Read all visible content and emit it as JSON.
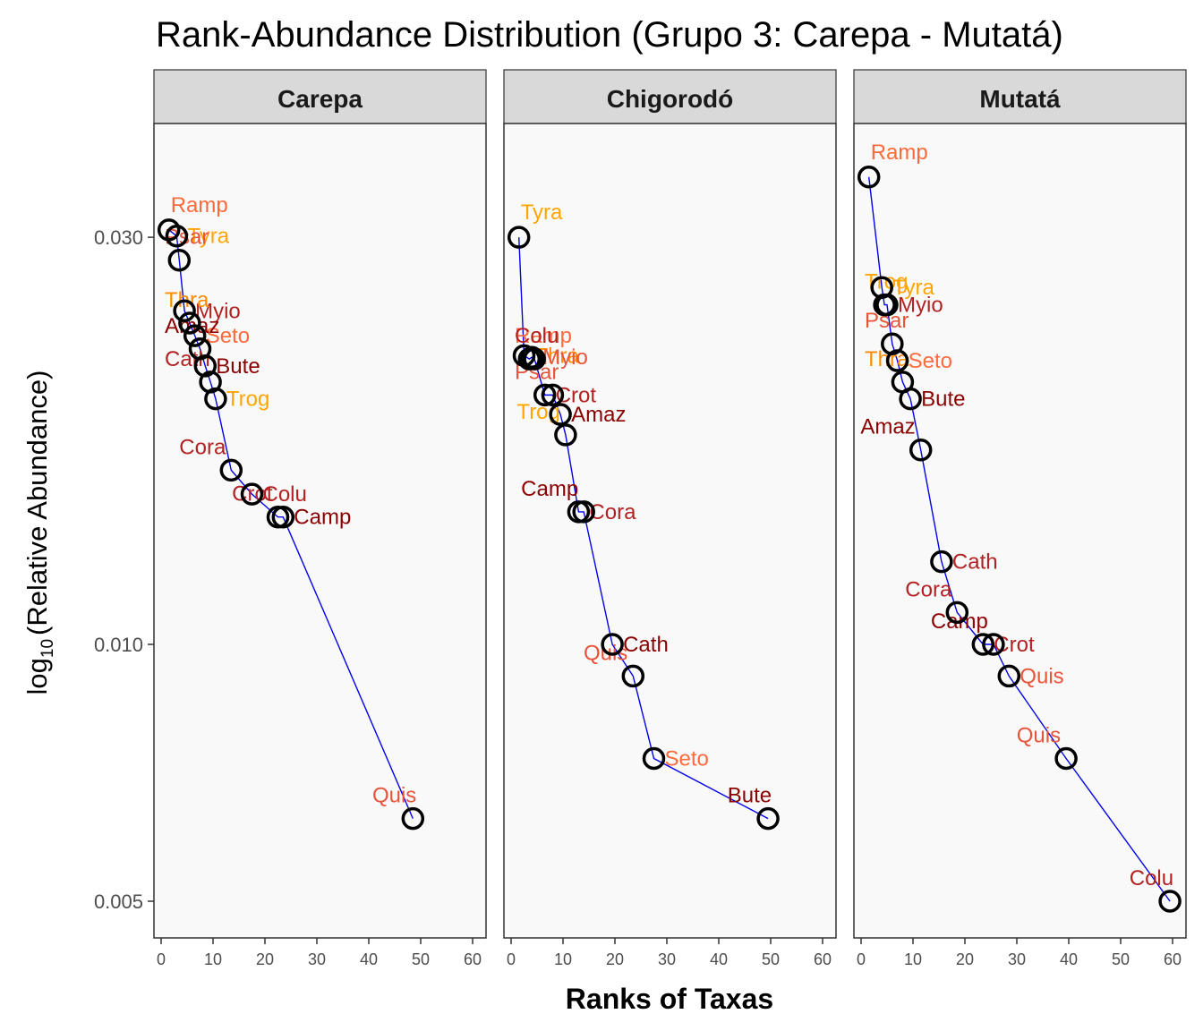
{
  "title": "Rank-Abundance Distribution (Grupo 3: Carepa - Mutatá)",
  "chart_data": {
    "type": "scatter",
    "title": "Rank-Abundance Distribution (Grupo 3: Carepa - Mutatá)",
    "xlabel": "Ranks of Taxas",
    "ylabel": {
      "prefix": "log",
      "subscript": "10",
      "text": "(Relative Abundance)"
    },
    "y_scale": "log10",
    "xlim": [
      0,
      63
    ],
    "ylim": [
      0.0045,
      0.037
    ],
    "x_ticks": [
      0,
      10,
      20,
      30,
      40,
      50,
      60
    ],
    "x_tick_labels": [
      "0",
      "10",
      "20",
      "30",
      "40",
      "50",
      "60"
    ],
    "y_ticks": [
      0.005,
      0.01,
      0.03
    ],
    "y_tick_labels": [
      "0.005",
      "0.010",
      "0.030"
    ],
    "grid": false,
    "panel_background": "#f9f9f9",
    "strip_background": "#d9d9d9",
    "line_color": "#0000ee",
    "label_colors": {
      "dark_red": "#8b0000",
      "red": "#b22222",
      "tomato": "#e8543a",
      "coral": "#ff6a3d",
      "orange": "#ff8c00",
      "gold": "#ffa500"
    },
    "panels": [
      {
        "name": "Carepa",
        "points": [
          {
            "taxon": "Ramp",
            "rank": 1.5,
            "abundance": 0.0306,
            "color": "#ff6a3d"
          },
          {
            "taxon": "Tyra",
            "rank": 3,
            "abundance": 0.0301,
            "color": "#ffa500"
          },
          {
            "taxon": "Psar",
            "rank": 3.5,
            "abundance": 0.0282,
            "color": "#e8543a"
          },
          {
            "taxon": "Myio",
            "rank": 4.5,
            "abundance": 0.0246,
            "color": "#b22222"
          },
          {
            "taxon": "Thra",
            "rank": 5.5,
            "abundance": 0.0238,
            "color": "#ff8c00"
          },
          {
            "taxon": "Seto",
            "rank": 6.5,
            "abundance": 0.023,
            "color": "#ff6a3d"
          },
          {
            "taxon": "Amaz",
            "rank": 7.5,
            "abundance": 0.0222,
            "color": "#8b0000"
          },
          {
            "taxon": "Bute",
            "rank": 8.5,
            "abundance": 0.0212,
            "color": "#8b0000"
          },
          {
            "taxon": "Cath",
            "rank": 9.5,
            "abundance": 0.0203,
            "color": "#b22222"
          },
          {
            "taxon": "Trog",
            "rank": 10.5,
            "abundance": 0.0194,
            "color": "#ffa500"
          },
          {
            "taxon": "Cora",
            "rank": 13.5,
            "abundance": 0.016,
            "color": "#b22222"
          },
          {
            "taxon": "Colu",
            "rank": 17.5,
            "abundance": 0.015,
            "color": "#b22222"
          },
          {
            "taxon": "Crot",
            "rank": 22.5,
            "abundance": 0.0141,
            "color": "#b22222"
          },
          {
            "taxon": "Camp",
            "rank": 23.5,
            "abundance": 0.0141,
            "color": "#8b0000"
          },
          {
            "taxon": "Quis",
            "rank": 48.5,
            "abundance": 0.00625,
            "color": "#e8543a"
          }
        ]
      },
      {
        "name": "Chigorodó",
        "points": [
          {
            "taxon": "Tyra",
            "rank": 1.5,
            "abundance": 0.03,
            "color": "#ffa500"
          },
          {
            "taxon": "Thra",
            "rank": 2.5,
            "abundance": 0.0218,
            "color": "#ff8c00"
          },
          {
            "taxon": "Ramp",
            "rank": 3.5,
            "abundance": 0.0216,
            "color": "#ff6a3d"
          },
          {
            "taxon": "Myio",
            "rank": 4,
            "abundance": 0.0217,
            "color": "#e8543a"
          },
          {
            "taxon": "Colu",
            "rank": 4.5,
            "abundance": 0.0216,
            "color": "#b22222"
          },
          {
            "taxon": "Crot",
            "rank": 6.5,
            "abundance": 0.0196,
            "color": "#b22222"
          },
          {
            "taxon": "Psar",
            "rank": 8,
            "abundance": 0.0196,
            "color": "#e8543a"
          },
          {
            "taxon": "Amaz",
            "rank": 9.5,
            "abundance": 0.0186,
            "color": "#8b0000"
          },
          {
            "taxon": "Trog",
            "rank": 10.5,
            "abundance": 0.0176,
            "color": "#ffa500"
          },
          {
            "taxon": "Cora",
            "rank": 13,
            "abundance": 0.0143,
            "color": "#b22222"
          },
          {
            "taxon": "Camp",
            "rank": 14,
            "abundance": 0.0143,
            "color": "#8b0000"
          },
          {
            "taxon": "Cath",
            "rank": 19.5,
            "abundance": 0.01,
            "color": "#8b0000"
          },
          {
            "taxon": "Quis",
            "rank": 23.5,
            "abundance": 0.00918,
            "color": "#e8543a"
          },
          {
            "taxon": "Seto",
            "rank": 27.5,
            "abundance": 0.00735,
            "color": "#ff6a3d"
          },
          {
            "taxon": "Bute",
            "rank": 49.5,
            "abundance": 0.00625,
            "color": "#8b0000"
          }
        ]
      },
      {
        "name": "Mutatá",
        "points": [
          {
            "taxon": "Ramp",
            "rank": 1.5,
            "abundance": 0.0353,
            "color": "#ff6a3d"
          },
          {
            "taxon": "Tyra",
            "rank": 4,
            "abundance": 0.0262,
            "color": "#ffa500"
          },
          {
            "taxon": "Trog",
            "rank": 4.5,
            "abundance": 0.025,
            "color": "#ffa500"
          },
          {
            "taxon": "Myio",
            "rank": 5,
            "abundance": 0.025,
            "color": "#b22222"
          },
          {
            "taxon": "Psar",
            "rank": 6,
            "abundance": 0.0225,
            "color": "#e8543a"
          },
          {
            "taxon": "Seto",
            "rank": 7,
            "abundance": 0.0215,
            "color": "#ff6a3d"
          },
          {
            "taxon": "Thra",
            "rank": 8,
            "abundance": 0.0203,
            "color": "#ff8c00"
          },
          {
            "taxon": "Bute",
            "rank": 9.5,
            "abundance": 0.0194,
            "color": "#8b0000"
          },
          {
            "taxon": "Amaz",
            "rank": 11.5,
            "abundance": 0.0169,
            "color": "#8b0000"
          },
          {
            "taxon": "Cath",
            "rank": 15.5,
            "abundance": 0.0125,
            "color": "#b22222"
          },
          {
            "taxon": "Cora",
            "rank": 18.5,
            "abundance": 0.0109,
            "color": "#b22222"
          },
          {
            "taxon": "Crot",
            "rank": 23.5,
            "abundance": 0.01,
            "color": "#b22222"
          },
          {
            "taxon": "Camp",
            "rank": 25.5,
            "abundance": 0.01,
            "color": "#8b0000"
          },
          {
            "taxon": "Quis",
            "rank": 28.5,
            "abundance": 0.00918,
            "color": "#e8543a"
          },
          {
            "taxon": "Quis",
            "rank": 39.5,
            "abundance": 0.00735,
            "color": "#e8543a"
          },
          {
            "taxon": "Colu",
            "rank": 59.5,
            "abundance": 0.005,
            "color": "#b22222"
          }
        ]
      }
    ]
  }
}
